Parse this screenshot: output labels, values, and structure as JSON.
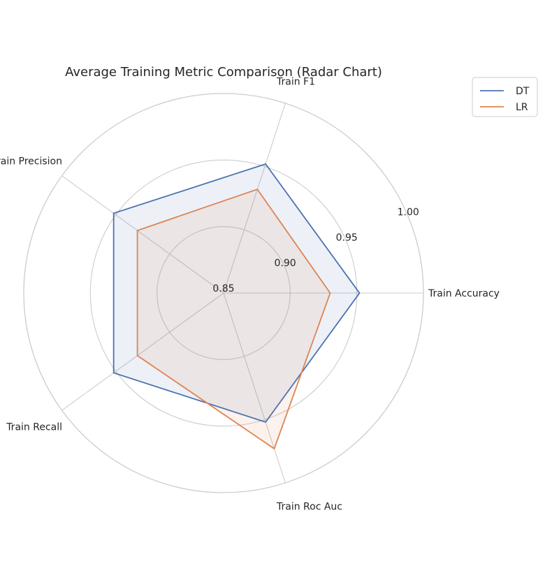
{
  "chart_data": {
    "type": "radar",
    "title": "Average Training Metric Comparison (Radar Chart)",
    "categories": [
      "Train Accuracy",
      "Train F1",
      "Train Precision",
      "Train Recall",
      "Train Roc Auc"
    ],
    "r_range": [
      0.85,
      1.0
    ],
    "r_ticks": [
      0.85,
      0.9,
      0.95,
      1.0
    ],
    "r_tick_labels": [
      "0.85",
      "0.90",
      "0.95",
      "1.00"
    ],
    "series": [
      {
        "name": "DT",
        "color": "#4c72b0",
        "values": [
          0.952,
          0.952,
          0.952,
          0.952,
          0.952
        ]
      },
      {
        "name": "LR",
        "color": "#dd8452",
        "values": [
          0.93,
          0.932,
          0.93,
          0.93,
          0.973
        ]
      }
    ],
    "legend": "top-right",
    "grid": true
  }
}
